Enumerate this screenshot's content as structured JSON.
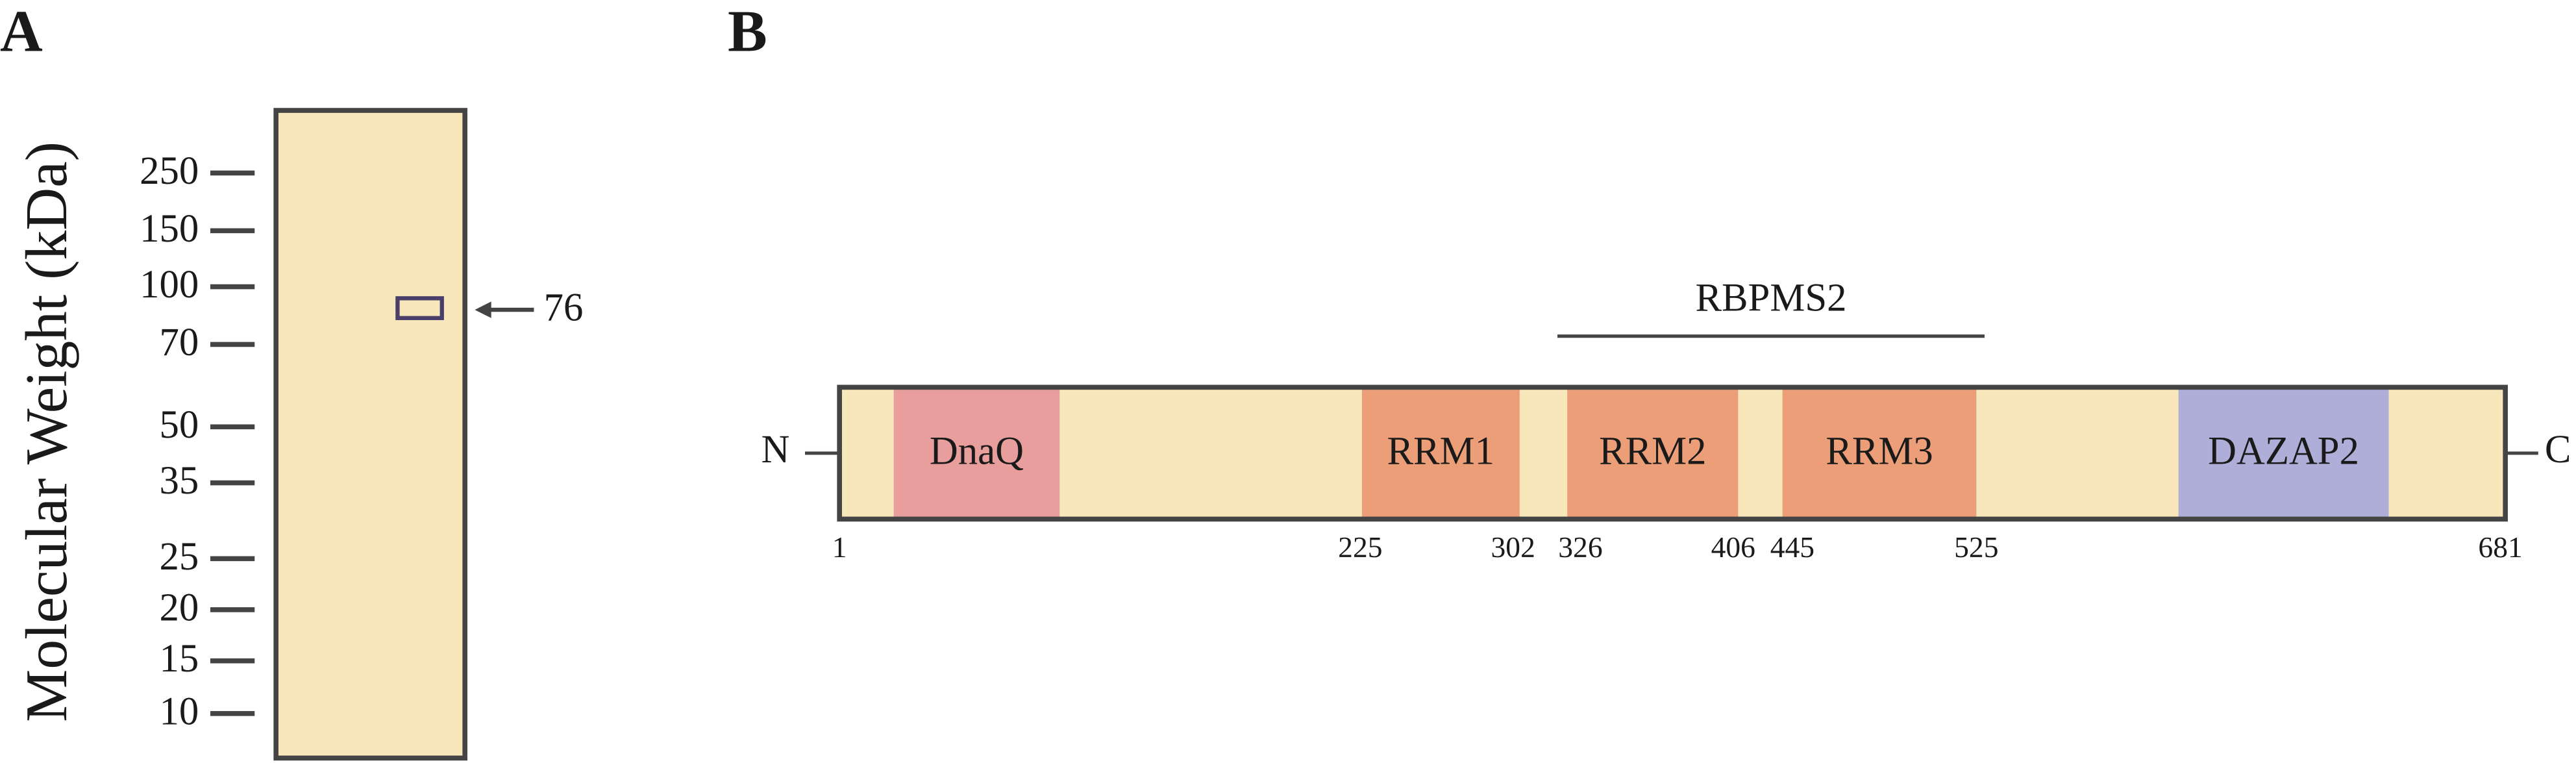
{
  "panel_a": {
    "label": "A",
    "axis_title": "Molecular Weight (kDa)",
    "markers": [
      250,
      150,
      100,
      70,
      50,
      35,
      25,
      20,
      15,
      10
    ],
    "band_label": 76
  },
  "panel_b": {
    "label": "B",
    "n_terminus": "N",
    "c_terminus": "C",
    "region": "RBPMS2",
    "domains": [
      {
        "name": "DnaQ"
      },
      {
        "name": "RRM1"
      },
      {
        "name": "RRM2"
      },
      {
        "name": "RRM3"
      },
      {
        "name": "DAZAP2"
      }
    ],
    "positions": [
      1,
      225,
      302,
      326,
      406,
      445,
      525,
      681
    ]
  }
}
